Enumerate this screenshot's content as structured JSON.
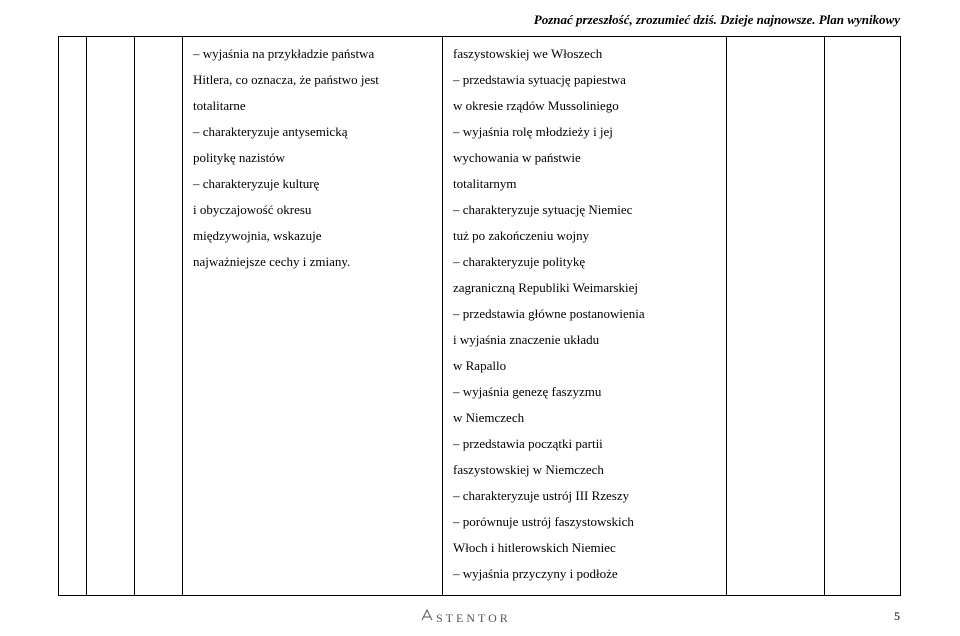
{
  "header": {
    "title": "Poznać przeszłość, zrozumieć dziś. Dzieje najnowsze. Plan wynikowy"
  },
  "table": {
    "col4_lines": [
      "– wyjaśnia na przykładzie państwa",
      "Hitlera, co oznacza, że państwo jest",
      "totalitarne",
      "– charakteryzuje antysemicką",
      "politykę nazistów",
      "– charakteryzuje kulturę",
      "i obyczajowość okresu",
      "międzywojnia, wskazuje",
      "najważniejsze cechy i zmiany."
    ],
    "col5_lines": [
      "faszystowskiej we Włoszech",
      "– przedstawia sytuację papiestwa",
      "w okresie rządów Mussoliniego",
      "– wyjaśnia rolę młodzieży i jej",
      "wychowania w państwie",
      "totalitarnym",
      "– charakteryzuje sytuację Niemiec",
      "tuż po zakończeniu wojny",
      "– charakteryzuje politykę",
      "zagraniczną Republiki Weimarskiej",
      "– przedstawia główne postanowienia",
      "i wyjaśnia znaczenie układu",
      "w Rapallo",
      "– wyjaśnia genezę faszyzmu",
      "w Niemczech",
      "– przedstawia początki partii",
      "faszystowskiej w Niemczech",
      "– charakteryzuje ustrój III Rzeszy",
      "– porównuje ustrój faszystowskich",
      "Włoch i hitlerowskich Niemiec",
      "– wyjaśnia przyczyny i podłoże"
    ]
  },
  "footer": {
    "logo_text": "STENTOR",
    "page_number": "5"
  },
  "style": {
    "font_family": "Times New Roman",
    "header_fontsize": 13,
    "body_fontsize": 13,
    "line_height": 2.0,
    "text_color": "#000000",
    "bg_color": "#ffffff",
    "border_color": "#000000",
    "logo_color": "#555555"
  }
}
